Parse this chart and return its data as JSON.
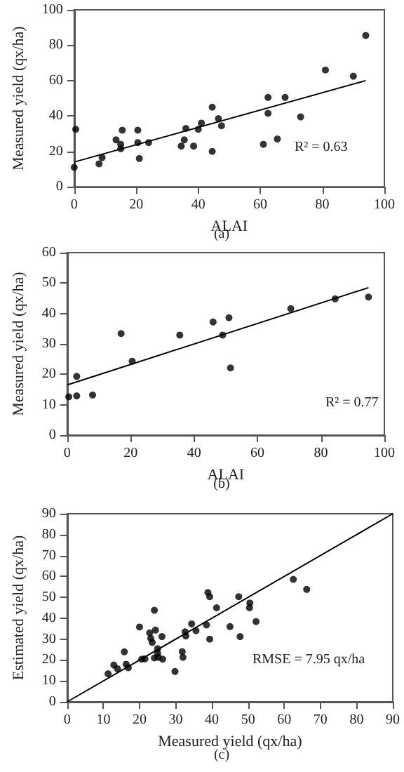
{
  "chart_data": [
    {
      "type": "scatter",
      "xlabel": "ALAI",
      "ylabel": "Measured yield (qx/ha)",
      "xlim": [
        0,
        100
      ],
      "xticks": [
        0,
        20,
        40,
        60,
        80,
        100
      ],
      "ylim": [
        0,
        100
      ],
      "yticks": [
        0,
        20,
        40,
        60,
        80,
        100
      ],
      "marker": "circle",
      "annotations": [
        "R² = 0.63",
        "(a)"
      ],
      "series": [
        {
          "color": "#000000",
          "x": [
            0,
            0.5,
            8,
            9,
            13.5,
            15,
            15,
            15.5,
            20.5,
            20.5,
            21,
            24,
            34.5,
            35.5,
            36,
            38.5,
            40,
            41,
            44.5,
            44.5,
            46.5,
            47.5,
            61,
            62.5,
            62.5,
            65.5,
            68,
            73,
            81,
            90,
            94
          ],
          "values": [
            11,
            32.5,
            13,
            16.5,
            26.5,
            24,
            21.5,
            32,
            32,
            25,
            16,
            25,
            23,
            26.5,
            33,
            23,
            32.5,
            36,
            20,
            45,
            38.5,
            34.5,
            24,
            50.5,
            41.5,
            27,
            50.5,
            39.5,
            66,
            62.5,
            85.5
          ]
        },
        {
          "type": "line",
          "color": "#000000",
          "marker": "none",
          "line_style": "solid",
          "x": [
            0,
            94
          ],
          "values": [
            14,
            60
          ]
        }
      ]
    },
    {
      "type": "scatter",
      "xlabel": "ALAI",
      "ylabel": "Measured yield (qx/ha)",
      "xlim": [
        0,
        100
      ],
      "xticks": [
        0,
        20,
        40,
        60,
        80,
        100
      ],
      "ylim": [
        0,
        60
      ],
      "yticks": [
        0,
        10,
        20,
        30,
        40,
        50,
        60
      ],
      "marker": "circle",
      "annotations": [
        "R² = 0.77",
        "(b)"
      ],
      "series": [
        {
          "color": "#000000",
          "x": [
            0.5,
            3,
            3,
            8,
            17,
            20.5,
            35.5,
            46,
            49,
            51,
            51.5,
            70.5,
            84.5,
            95
          ],
          "values": [
            12.6,
            19.3,
            12.9,
            13.2,
            33.4,
            24.3,
            32.9,
            37.2,
            32.9,
            38.6,
            22.1,
            41.6,
            44.8,
            45.4
          ]
        },
        {
          "type": "line",
          "color": "#000000",
          "marker": "none",
          "line_style": "solid",
          "x": [
            0,
            95
          ],
          "values": [
            16.5,
            48.5
          ]
        }
      ]
    },
    {
      "type": "scatter",
      "xlabel": "Measured yield (qx/ha)",
      "ylabel": "Estimated yield (qx/ha)",
      "xlim": [
        0,
        90
      ],
      "xticks": [
        0,
        10,
        20,
        30,
        40,
        50,
        60,
        70,
        80,
        90
      ],
      "ylim": [
        0,
        90
      ],
      "yticks": [
        0,
        10,
        20,
        30,
        40,
        50,
        60,
        70,
        80,
        90
      ],
      "marker": "circle",
      "annotations": [
        "RMSE = 7.95 qx/ha",
        "(c)"
      ],
      "series": [
        {
          "color": "#000000",
          "x": [
            11.3,
            12.9,
            13.9,
            15.8,
            16.3,
            16.9,
            20,
            20.6,
            21.5,
            22.8,
            23.1,
            23.5,
            24.1,
            24.4,
            24.1,
            25,
            25,
            25.2,
            26.2,
            26.4,
            29.8,
            31.8,
            32,
            32.6,
            32.8,
            35.6,
            34.4,
            38.5,
            38.9,
            39.4,
            39.4,
            41.3,
            45,
            47.4,
            47.8,
            50.5,
            50.4,
            52.2,
            62.5,
            66.2
          ],
          "values": [
            13.4,
            17.6,
            15.8,
            23.9,
            18,
            16.3,
            35.8,
            20.4,
            20.6,
            33,
            30.4,
            28.4,
            43.8,
            34.3,
            21,
            25.4,
            23.2,
            21.3,
            31.2,
            20.4,
            14.5,
            24,
            21.3,
            33.5,
            31.5,
            34,
            37.3,
            36.8,
            52.3,
            50.3,
            30,
            45,
            36,
            50.3,
            31.2,
            47.3,
            45,
            38.4,
            58.6,
            53.8
          ]
        },
        {
          "type": "line",
          "color": "#000000",
          "marker": "none",
          "line_style": "solid",
          "x": [
            0,
            90
          ],
          "values": [
            0,
            90
          ]
        }
      ]
    }
  ]
}
